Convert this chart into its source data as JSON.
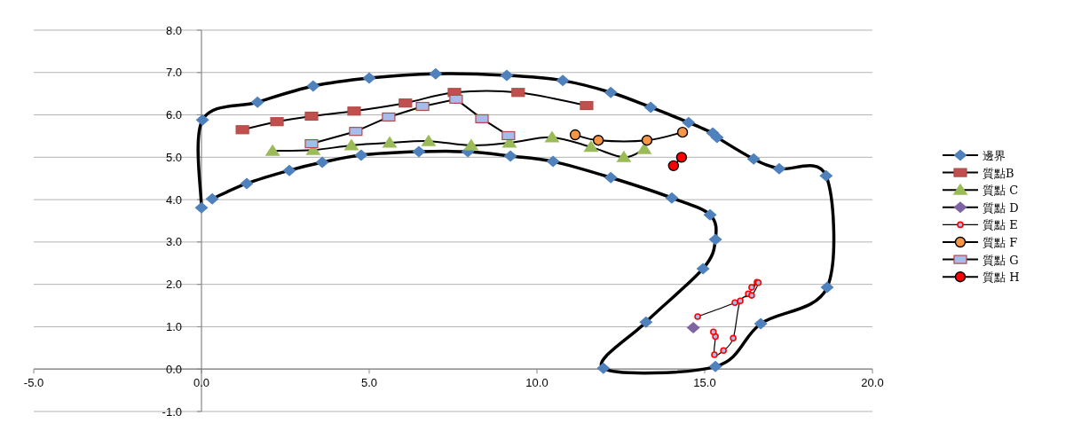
{
  "chart_data": {
    "type": "line",
    "xlim": [
      -5,
      20
    ],
    "ylim": [
      -1,
      8
    ],
    "xticks": [
      {
        "value": -5,
        "label": "-5.0"
      },
      {
        "value": 0,
        "label": "0.0"
      },
      {
        "value": 5,
        "label": "5.0"
      },
      {
        "value": 10,
        "label": "10.0"
      },
      {
        "value": 15,
        "label": "15.0"
      },
      {
        "value": 20,
        "label": "20.0"
      }
    ],
    "yticks": [
      {
        "value": -1,
        "label": "-1.0"
      },
      {
        "value": 0,
        "label": "0.0"
      },
      {
        "value": 1,
        "label": "1.0"
      },
      {
        "value": 2,
        "label": "2.0"
      },
      {
        "value": 3,
        "label": "3.0"
      },
      {
        "value": 4,
        "label": "4.0"
      },
      {
        "value": 5,
        "label": "5.0"
      },
      {
        "value": 6,
        "label": "6.0"
      },
      {
        "value": 7,
        "label": "7.0"
      },
      {
        "value": 8,
        "label": "8.0"
      }
    ],
    "grid": "y",
    "legend": "right",
    "line_style": "solid",
    "series": [
      {
        "name": "邊界",
        "type": "line",
        "color": "#4f81bd",
        "marker": "diamond",
        "x": [
          0.0,
          0.03,
          1.67,
          3.33,
          5.0,
          6.98,
          9.1,
          10.77,
          12.2,
          13.39,
          14.52,
          15.24,
          15.37,
          16.46,
          17.22,
          18.62,
          18.65,
          16.67,
          15.32,
          11.98,
          13.25,
          14.95,
          15.32,
          15.16,
          14.02,
          12.2,
          10.48,
          9.21,
          7.94,
          6.48,
          4.76,
          3.6,
          2.62,
          1.35,
          0.32
        ],
        "values": [
          3.81,
          5.88,
          6.3,
          6.68,
          6.87,
          6.97,
          6.93,
          6.81,
          6.53,
          6.18,
          5.82,
          5.57,
          5.47,
          4.96,
          4.73,
          4.56,
          1.93,
          1.07,
          0.06,
          0.02,
          1.11,
          2.37,
          3.06,
          3.64,
          4.04,
          4.52,
          4.9,
          5.03,
          5.13,
          5.13,
          5.05,
          4.88,
          4.69,
          4.38,
          4.02
        ]
      },
      {
        "name": "質點B",
        "color": "#c0504d",
        "marker": "square",
        "x": [
          1.22,
          2.25,
          3.28,
          4.55,
          6.08,
          7.54,
          9.44,
          11.48
        ],
        "values": [
          5.65,
          5.84,
          5.97,
          6.09,
          6.28,
          6.53,
          6.53,
          6.22
        ]
      },
      {
        "name": "質點 C",
        "color": "#9bbb59",
        "marker": "triangle",
        "x": [
          2.12,
          3.33,
          4.47,
          5.61,
          6.77,
          8.04,
          9.18,
          10.45,
          11.61,
          12.59,
          13.2
        ],
        "values": [
          5.15,
          5.17,
          5.28,
          5.34,
          5.38,
          5.28,
          5.34,
          5.47,
          5.24,
          5.0,
          5.19
        ]
      },
      {
        "name": "質點 D",
        "color": "#8064a2",
        "marker": "diamond",
        "x": [
          14.66
        ],
        "values": [
          0.98
        ]
      },
      {
        "name": "質點 E",
        "color": "#ff0000",
        "marker": "circle",
        "x": [
          14.79,
          15.9,
          16.3,
          16.56,
          16.4,
          16.6,
          16.4,
          16.06,
          15.85,
          15.56,
          15.29,
          15.32,
          15.26
        ],
        "values": [
          1.24,
          1.57,
          1.78,
          2.05,
          1.93,
          2.04,
          1.74,
          1.61,
          0.73,
          0.44,
          0.34,
          0.77,
          0.88
        ]
      },
      {
        "name": "質點 F",
        "color": "#f79646",
        "marker": "circle",
        "x": [
          11.14,
          11.83,
          13.28,
          14.34
        ],
        "values": [
          5.53,
          5.4,
          5.4,
          5.59
        ]
      },
      {
        "name": "質點 G",
        "color": "#a6bcea",
        "marker": "square",
        "x": [
          3.28,
          4.6,
          5.58,
          6.59,
          7.59,
          8.36,
          9.15
        ],
        "values": [
          5.32,
          5.61,
          5.95,
          6.2,
          6.37,
          5.91,
          5.51
        ]
      },
      {
        "name": "質點 H",
        "color": "#ff0000",
        "marker": "circle",
        "x": [
          14.07,
          14.31
        ],
        "values": [
          4.8,
          5.0
        ]
      }
    ]
  }
}
